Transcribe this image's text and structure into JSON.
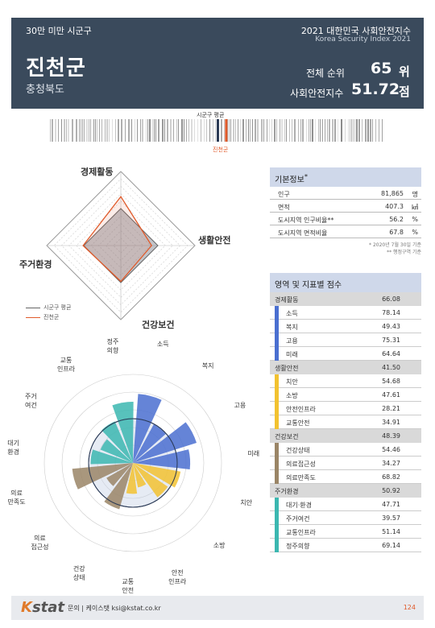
{
  "header": {
    "population_class": "30만 미만 시군구",
    "index_title": "2021 대한민국 사회안전지수",
    "index_title_en": "Korea Security Index 2021",
    "region": "진천군",
    "province": "충청북도",
    "rank_label": "전체 순위",
    "rank_value": "65",
    "rank_unit": "위",
    "score_label": "사회안전지수",
    "score_value": "51.72",
    "score_unit": "점"
  },
  "barcode": {
    "avg_label": "시군구 평균",
    "own_label": "진천군",
    "avg_color": "#2b3a55",
    "own_color": "#e05a2a",
    "avg_position": 0.5,
    "own_position": 0.525
  },
  "radar": {
    "labels": [
      "경제활동",
      "생활안전",
      "건강보건",
      "주거환경"
    ],
    "legend_avg": "시군구 평균",
    "legend_own": "진천군",
    "avg_values": [
      50,
      50,
      50,
      50
    ],
    "own_values": [
      66.08,
      41.5,
      48.39,
      50.92
    ],
    "own_color": "#e05a2a",
    "avg_color": "#8a8f98"
  },
  "basic_info": {
    "title": "기본정보",
    "title_sup": "*",
    "rows": [
      {
        "label": "인구",
        "value": "81,865",
        "unit": "명"
      },
      {
        "label": "면적",
        "value": "407.3",
        "unit": "㎢"
      },
      {
        "label": "도시지역 인구비율**",
        "value": "56.2",
        "unit": "%"
      },
      {
        "label": "도시지역 면적비율",
        "value": "67.8",
        "unit": "%"
      }
    ],
    "note1": "* 2020년 7월 30일 기준",
    "note2": "** 행정구역 기준"
  },
  "scores": {
    "title": "영역 및 지표별 점수",
    "domains": [
      {
        "name": "경제활동",
        "value": "66.08",
        "color": "#4a6fd0",
        "items": [
          {
            "name": "소득",
            "value": "78.14"
          },
          {
            "name": "복지",
            "value": "49.43"
          },
          {
            "name": "고용",
            "value": "75.31"
          },
          {
            "name": "미래",
            "value": "64.64"
          }
        ]
      },
      {
        "name": "생활안전",
        "value": "41.50",
        "color": "#f2c230",
        "items": [
          {
            "name": "치안",
            "value": "54.68"
          },
          {
            "name": "소방",
            "value": "47.61"
          },
          {
            "name": "안전인프라",
            "value": "28.21"
          },
          {
            "name": "교통안전",
            "value": "34.91"
          }
        ]
      },
      {
        "name": "건강보건",
        "value": "48.39",
        "color": "#9a8566",
        "items": [
          {
            "name": "건강상태",
            "value": "54.46"
          },
          {
            "name": "의료접근성",
            "value": "34.27"
          },
          {
            "name": "의료만족도",
            "value": "68.82"
          }
        ]
      },
      {
        "name": "주거환경",
        "value": "50.92",
        "color": "#3bb7b0",
        "items": [
          {
            "name": "대기·환경",
            "value": "47.71"
          },
          {
            "name": "주거여건",
            "value": "39.57"
          },
          {
            "name": "교통인프라",
            "value": "51.14"
          },
          {
            "name": "정주의향",
            "value": "69.14"
          }
        ]
      }
    ]
  },
  "polar": {
    "labels": [
      "소득",
      "복지",
      "고용",
      "미래",
      "치안",
      "소방",
      "안전\n인프라",
      "교통\n안전",
      "건강\n상태",
      "의료\n접근성",
      "의료\n만족도",
      "대기\n환경",
      "주거\n여건",
      "교통\n인프라",
      "정주\n의향"
    ],
    "values": [
      78.14,
      49.43,
      75.31,
      64.64,
      54.68,
      47.61,
      28.21,
      34.91,
      54.46,
      34.27,
      68.82,
      47.71,
      39.57,
      51.14,
      69.14
    ],
    "colors": [
      "#4a6fd0",
      "#4a6fd0",
      "#4a6fd0",
      "#4a6fd0",
      "#f2c230",
      "#f2c230",
      "#f2c230",
      "#f2c230",
      "#9a8566",
      "#9a8566",
      "#9a8566",
      "#3bb7b0",
      "#3bb7b0",
      "#3bb7b0",
      "#3bb7b0"
    ]
  },
  "footer": {
    "logo_k": "K",
    "logo_rest": "stat",
    "contact": "문의 | 케이스탯 ksi@kstat.co.kr",
    "page": "124"
  }
}
